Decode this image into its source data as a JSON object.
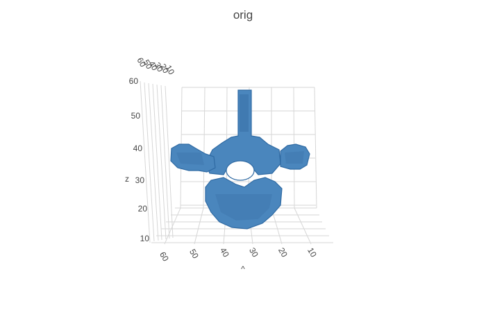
{
  "chart_data": {
    "type": "3d-volume",
    "title": "orig",
    "axes": {
      "x": {
        "label": "",
        "ticks": [
          "10",
          "20",
          "30",
          "40",
          "50",
          "60"
        ]
      },
      "y": {
        "label": "",
        "ticks": [
          "10",
          "20",
          "30",
          "40",
          "50",
          "60"
        ]
      },
      "z": {
        "label": "z",
        "ticks": [
          "10",
          "20",
          "30",
          "40",
          "50",
          "60"
        ]
      }
    },
    "x_axis_title_fragment": "^",
    "color": "#3b78b1",
    "grid": true
  }
}
